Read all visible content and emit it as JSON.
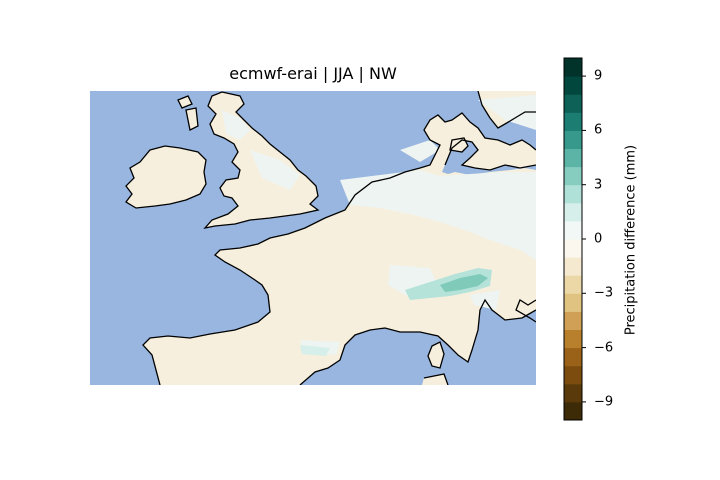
{
  "title": "ecmwf-erai | JJA | NW",
  "colorbar": {
    "label": "Precipitation difference (mm)",
    "ticks": [
      {
        "value": 9,
        "label": "9"
      },
      {
        "value": 6,
        "label": "6"
      },
      {
        "value": 3,
        "label": "3"
      },
      {
        "value": 0,
        "label": "0"
      },
      {
        "value": -3,
        "label": "−3"
      },
      {
        "value": -6,
        "label": "−6"
      },
      {
        "value": -9,
        "label": "−9"
      }
    ],
    "range": [
      -10,
      10
    ],
    "colors": [
      "#3d2b07",
      "#5a3a0a",
      "#7c4c0e",
      "#9a6218",
      "#b87f2d",
      "#cfa056",
      "#e0c381",
      "#ecd8a6",
      "#f5ead0",
      "#fbf7ee",
      "#f1f8f6",
      "#d6efea",
      "#b0e1d8",
      "#86cdc0",
      "#5cb4a6",
      "#37998c",
      "#1c7d72",
      "#0d6157",
      "#01473d",
      "#01332b"
    ]
  },
  "map": {
    "ocean_color": "#98b6e0",
    "land_color": "#f6efdd",
    "wet_color": "#eef4f1",
    "coast_color": "#000000"
  }
}
